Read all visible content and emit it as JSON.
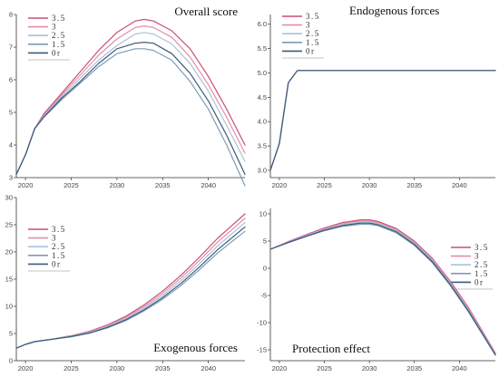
{
  "figure": {
    "legend_labels": [
      "3.5",
      "3",
      "2.5",
      "1.5",
      "0r"
    ],
    "series_colors": [
      "#c94f73",
      "#e38ea9",
      "#a9c2d9",
      "#7f9bb5",
      "#3c5a7a"
    ]
  },
  "chart_data": [
    {
      "type": "line",
      "title": "Overall score",
      "xlabel": "",
      "ylabel": "",
      "xlim": [
        2019,
        2044
      ],
      "ylim": [
        3,
        8
      ],
      "x_ticks": [
        2020,
        2025,
        2030,
        2035,
        2040
      ],
      "y_ticks": [
        3,
        4,
        5,
        6,
        7,
        8
      ],
      "grid": false,
      "legend_position": "top-left",
      "x": [
        2019,
        2020,
        2021,
        2022,
        2024,
        2026,
        2028,
        2030,
        2032,
        2033,
        2034,
        2036,
        2038,
        2040,
        2042,
        2044
      ],
      "series": [
        {
          "name": "3.5",
          "values": [
            3.1,
            3.7,
            4.5,
            4.95,
            5.6,
            6.25,
            6.9,
            7.45,
            7.8,
            7.85,
            7.8,
            7.5,
            6.95,
            6.1,
            5.1,
            4.0
          ]
        },
        {
          "name": "3",
          "values": [
            3.1,
            3.7,
            4.5,
            4.9,
            5.55,
            6.15,
            6.75,
            7.25,
            7.6,
            7.65,
            7.6,
            7.3,
            6.7,
            5.85,
            4.85,
            3.75
          ]
        },
        {
          "name": "2.5",
          "values": [
            3.1,
            3.7,
            4.5,
            4.88,
            5.5,
            6.05,
            6.6,
            7.05,
            7.4,
            7.45,
            7.4,
            7.1,
            6.5,
            5.65,
            4.6,
            3.5
          ]
        },
        {
          "name": "1.5",
          "values": [
            3.1,
            3.7,
            4.5,
            4.85,
            5.4,
            5.9,
            6.4,
            6.8,
            6.95,
            6.95,
            6.9,
            6.6,
            5.95,
            5.1,
            4.0,
            2.75
          ]
        },
        {
          "name": "0r",
          "values": [
            3.1,
            3.7,
            4.5,
            4.85,
            5.45,
            5.95,
            6.5,
            6.95,
            7.12,
            7.15,
            7.12,
            6.8,
            6.2,
            5.35,
            4.3,
            3.1
          ]
        }
      ]
    },
    {
      "type": "line",
      "title": "Endogenous forces",
      "xlabel": "",
      "ylabel": "",
      "xlim": [
        2019,
        2044
      ],
      "ylim": [
        2.85,
        6.2
      ],
      "x_ticks": [
        2020,
        2025,
        2030,
        2035,
        2040
      ],
      "y_ticks": [
        3.0,
        3.5,
        4.0,
        4.5,
        5.0,
        5.5,
        6.0
      ],
      "y_tick_labels": [
        "3.0",
        "3.5",
        "4.0",
        "4.5",
        "5.0",
        "5.5",
        "6.0"
      ],
      "grid": false,
      "legend_position": "top-left",
      "x": [
        2019,
        2020,
        2021,
        2022,
        2030,
        2040,
        2044
      ],
      "series": [
        {
          "name": "3.5",
          "values": [
            3.0,
            3.55,
            4.8,
            5.05,
            5.05,
            5.05,
            5.05
          ]
        },
        {
          "name": "3",
          "values": [
            3.0,
            3.55,
            4.8,
            5.05,
            5.05,
            5.05,
            5.05
          ]
        },
        {
          "name": "2.5",
          "values": [
            3.0,
            3.55,
            4.8,
            5.05,
            5.05,
            5.05,
            5.05
          ]
        },
        {
          "name": "1.5",
          "values": [
            3.0,
            3.55,
            4.8,
            5.05,
            5.05,
            5.05,
            5.05
          ]
        },
        {
          "name": "0r",
          "values": [
            3.0,
            3.55,
            4.8,
            5.05,
            5.05,
            5.05,
            5.05
          ]
        }
      ]
    },
    {
      "type": "line",
      "title": "Exogenous forces",
      "xlabel": "",
      "ylabel": "",
      "xlim": [
        2019,
        2044
      ],
      "ylim": [
        0,
        30
      ],
      "x_ticks": [
        2020,
        2025,
        2030,
        2035,
        2040
      ],
      "y_ticks": [
        0,
        5,
        10,
        15,
        20,
        25,
        30
      ],
      "grid": false,
      "legend_position": "top-left",
      "x": [
        2019,
        2020,
        2021,
        2023,
        2025,
        2027,
        2029,
        2031,
        2033,
        2035,
        2037,
        2039,
        2041,
        2044
      ],
      "series": [
        {
          "name": "3.5",
          "values": [
            2.3,
            3.0,
            3.5,
            4.0,
            4.6,
            5.4,
            6.6,
            8.2,
            10.3,
            12.8,
            15.7,
            19.0,
            22.5,
            27.0
          ]
        },
        {
          "name": "3",
          "values": [
            2.3,
            3.0,
            3.5,
            4.0,
            4.55,
            5.3,
            6.45,
            8.0,
            10.0,
            12.4,
            15.2,
            18.4,
            21.8,
            26.2
          ]
        },
        {
          "name": "2.5",
          "values": [
            2.3,
            3.0,
            3.5,
            4.0,
            4.5,
            5.2,
            6.3,
            7.8,
            9.7,
            12.0,
            14.7,
            17.8,
            21.1,
            25.4
          ]
        },
        {
          "name": "1.5",
          "values": [
            2.3,
            3.0,
            3.5,
            3.95,
            4.4,
            5.05,
            6.05,
            7.4,
            9.2,
            11.3,
            13.8,
            16.7,
            19.8,
            23.8
          ]
        },
        {
          "name": "0r",
          "values": [
            2.3,
            3.0,
            3.5,
            3.95,
            4.45,
            5.1,
            6.15,
            7.55,
            9.4,
            11.6,
            14.2,
            17.2,
            20.4,
            24.6
          ]
        }
      ]
    },
    {
      "type": "line",
      "title": "Protection effect",
      "xlabel": "",
      "ylabel": "",
      "xlim": [
        2019,
        2044
      ],
      "ylim": [
        -17,
        11
      ],
      "x_ticks": [
        2020,
        2025,
        2030,
        2035,
        2040
      ],
      "y_ticks": [
        -15,
        -10,
        -5,
        0,
        5,
        10
      ],
      "grid": false,
      "legend_position": "top-right",
      "x": [
        2019,
        2021,
        2023,
        2025,
        2027,
        2029,
        2030,
        2031,
        2033,
        2035,
        2037,
        2039,
        2041,
        2044
      ],
      "series": [
        {
          "name": "3.5",
          "values": [
            3.5,
            4.9,
            6.2,
            7.4,
            8.4,
            8.9,
            8.9,
            8.6,
            7.3,
            5.0,
            1.8,
            -2.4,
            -7.2,
            -15.6
          ]
        },
        {
          "name": "3",
          "values": [
            3.5,
            4.85,
            6.1,
            7.25,
            8.2,
            8.7,
            8.7,
            8.4,
            7.1,
            4.8,
            1.6,
            -2.6,
            -7.4,
            -15.7
          ]
        },
        {
          "name": "2.5",
          "values": [
            3.5,
            4.8,
            6.0,
            7.1,
            8.0,
            8.5,
            8.5,
            8.2,
            6.9,
            4.6,
            1.4,
            -2.8,
            -7.6,
            -15.8
          ]
        },
        {
          "name": "1.5",
          "values": [
            3.5,
            4.7,
            5.85,
            6.9,
            7.7,
            8.1,
            8.1,
            7.8,
            6.5,
            4.2,
            1.0,
            -3.2,
            -8.0,
            -16.0
          ]
        },
        {
          "name": "0r",
          "values": [
            3.5,
            4.75,
            5.9,
            7.0,
            7.85,
            8.3,
            8.3,
            8.0,
            6.7,
            4.4,
            1.2,
            -3.0,
            -7.8,
            -15.9
          ]
        }
      ]
    }
  ]
}
